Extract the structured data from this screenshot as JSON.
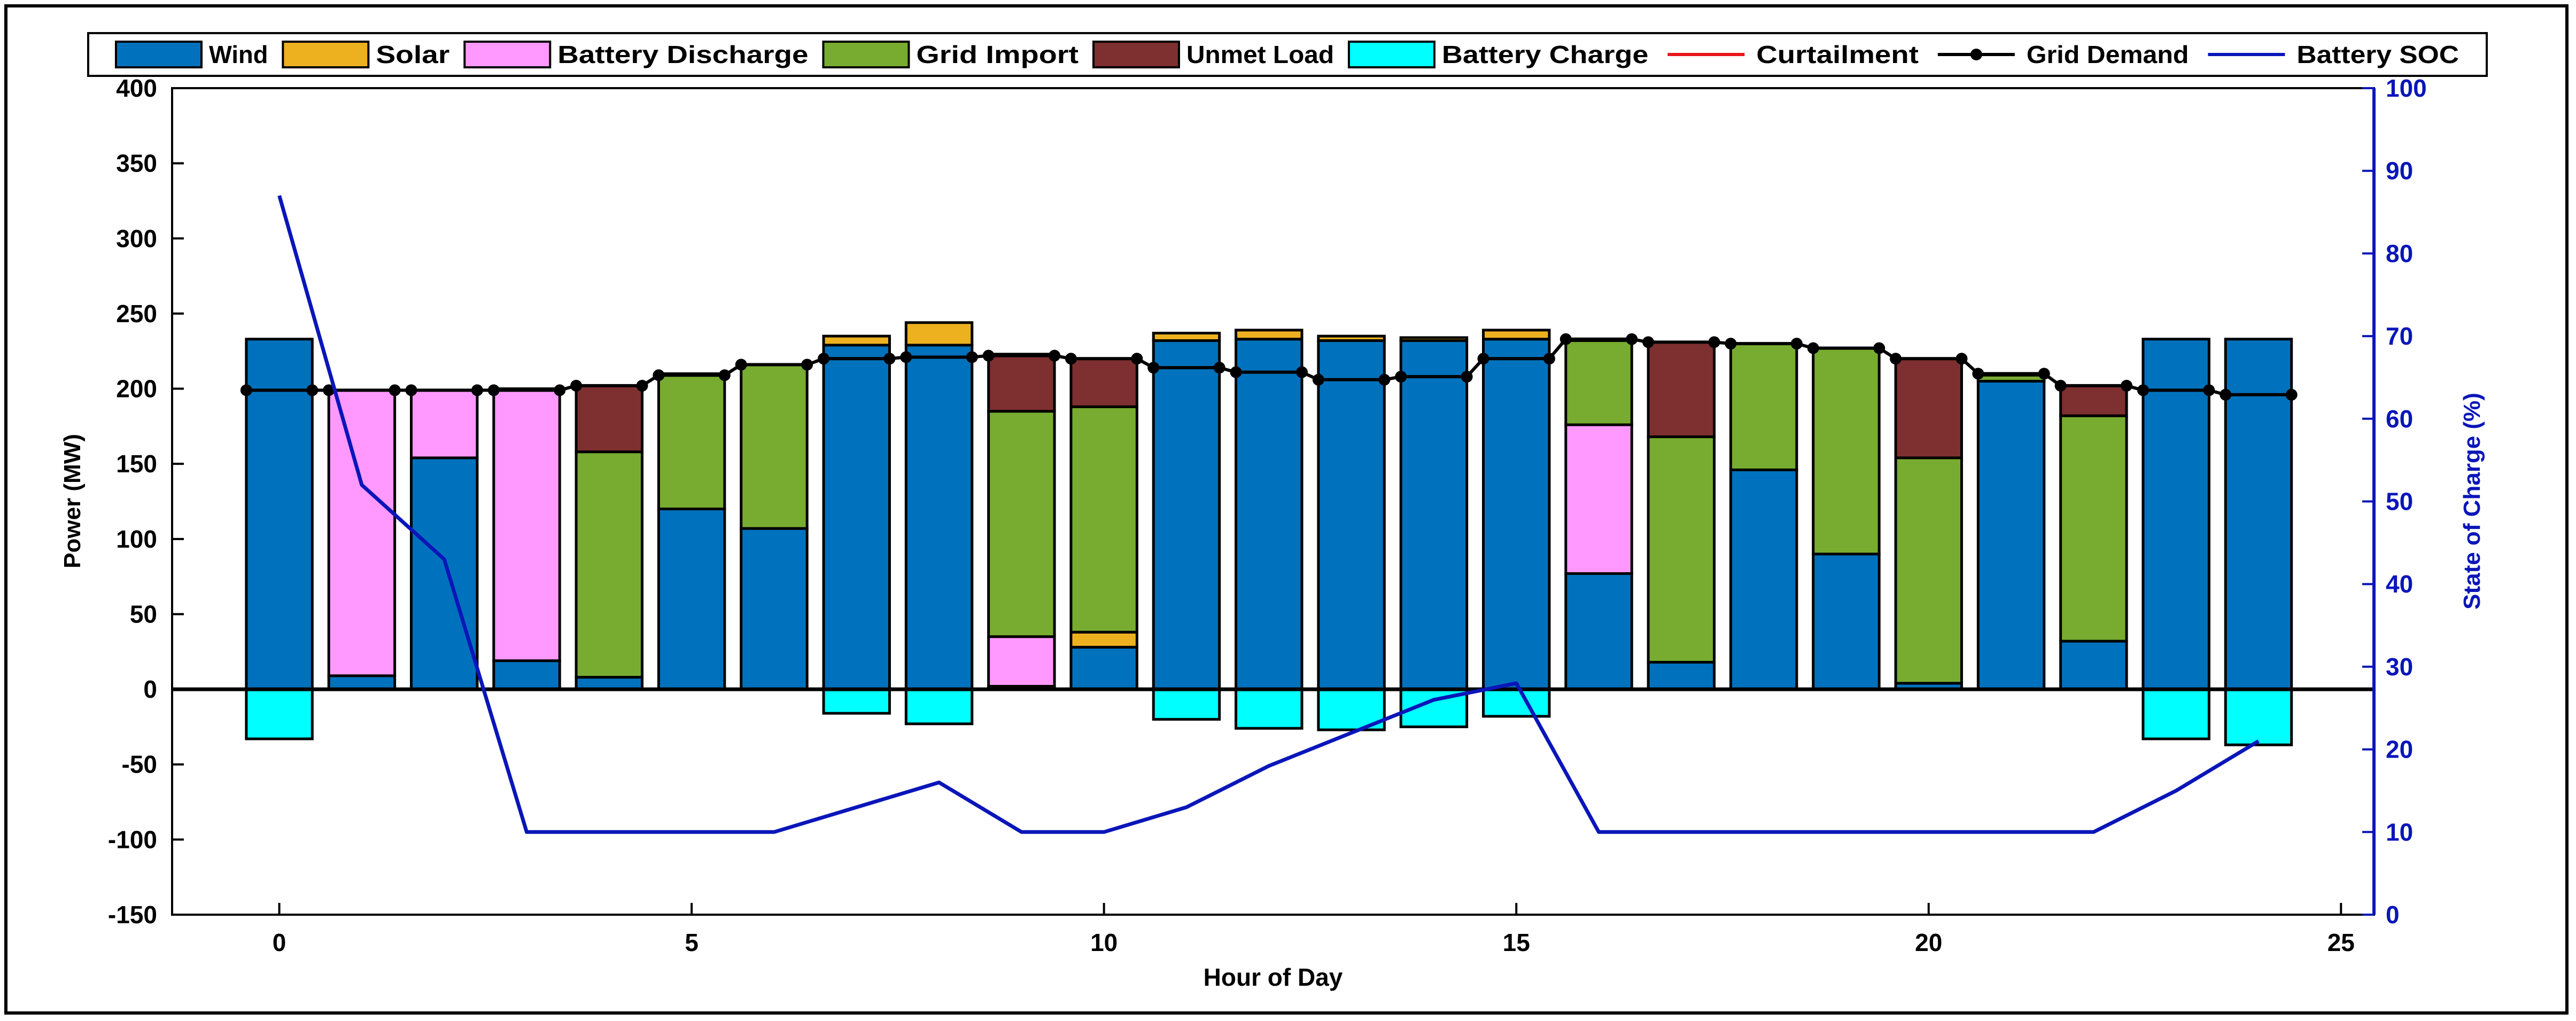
{
  "chart_data": {
    "type": "bar",
    "stacked": true,
    "xlabel": "Hour of Day",
    "ylabel": "Power (MW)",
    "y2label": "State of Charge (%)",
    "xlim": [
      -1.3,
      25.4
    ],
    "ylim": [
      -150,
      400
    ],
    "y2lim": [
      0,
      100
    ],
    "xticks": [
      0,
      5,
      10,
      15,
      20,
      25
    ],
    "yticks": [
      -150,
      -100,
      -50,
      0,
      50,
      100,
      150,
      200,
      250,
      300,
      350,
      400
    ],
    "y2ticks": [
      0,
      10,
      20,
      30,
      40,
      50,
      60,
      70,
      80,
      90,
      100
    ],
    "bar_width": 0.8,
    "legend": {
      "location": "top",
      "entries": [
        {
          "key": "wind",
          "label": "Wind",
          "kind": "patch",
          "color": "#0072BD"
        },
        {
          "key": "solar",
          "label": "Solar",
          "kind": "patch",
          "color": "#EDB120"
        },
        {
          "key": "battery_discharge",
          "label": "Battery Discharge",
          "kind": "patch",
          "color": "#FF99FF"
        },
        {
          "key": "grid_import",
          "label": "Grid Import",
          "kind": "patch",
          "color": "#77AC30"
        },
        {
          "key": "unmet_load",
          "label": "Unmet Load",
          "kind": "patch",
          "color": "#7E2F2F"
        },
        {
          "key": "battery_charge",
          "label": "Battery Charge",
          "kind": "patch",
          "color": "#00FFFF"
        },
        {
          "key": "curtailment",
          "label": "Curtailment",
          "kind": "line",
          "color": "#E8161B"
        },
        {
          "key": "grid_demand",
          "label": "Grid Demand",
          "kind": "line-marker",
          "color": "#000000"
        },
        {
          "key": "battery_soc",
          "label": "Battery SOC",
          "kind": "line",
          "color": "#0A16B8"
        }
      ]
    },
    "x": [
      0,
      1,
      2,
      3,
      4,
      5,
      6,
      7,
      8,
      9,
      10,
      11,
      12,
      13,
      14,
      15,
      16,
      17,
      18,
      19,
      20,
      21,
      22,
      23,
      24
    ],
    "series": [
      {
        "key": "wind",
        "name": "Wind",
        "values": [
          233,
          9,
          154,
          19,
          8,
          120,
          107,
          229,
          229,
          2,
          28,
          232,
          233,
          232,
          232,
          233,
          77,
          18,
          146,
          90,
          4,
          205,
          32,
          233,
          233
        ]
      },
      {
        "key": "solar",
        "name": "Solar",
        "values": [
          0,
          0,
          0,
          0,
          0,
          0,
          0,
          6,
          15,
          0,
          10,
          5,
          6,
          3,
          2,
          6,
          0,
          0,
          0,
          0,
          0,
          0,
          0,
          0,
          0
        ]
      },
      {
        "key": "battery_discharge",
        "name": "Battery Discharge",
        "values": [
          0,
          190,
          45,
          181,
          0,
          0,
          0,
          0,
          0,
          33,
          0,
          0,
          0,
          0,
          0,
          0,
          99,
          0,
          0,
          0,
          0,
          0,
          0,
          0,
          0
        ]
      },
      {
        "key": "grid_import",
        "name": "Grid Import",
        "values": [
          0,
          0,
          0,
          0,
          150,
          90,
          109,
          0,
          0,
          150,
          150,
          0,
          0,
          0,
          0,
          0,
          56,
          150,
          84,
          137,
          150,
          4,
          150,
          0,
          0
        ]
      },
      {
        "key": "unmet_load",
        "name": "Unmet Load",
        "values": [
          0,
          0,
          0,
          0,
          44,
          0,
          0,
          0,
          0,
          38,
          32,
          0,
          0,
          0,
          0,
          0,
          0,
          63,
          0,
          0,
          66,
          0,
          20,
          0,
          0
        ]
      },
      {
        "key": "battery_charge",
        "name": "Battery Charge",
        "values": [
          -33,
          0,
          0,
          0,
          0,
          0,
          0,
          -16,
          -23,
          0,
          0,
          -20,
          -26,
          -27,
          -25,
          -18,
          0,
          0,
          0,
          0,
          0,
          0,
          0,
          -33,
          -37
        ]
      }
    ],
    "grid_demand": [
      199,
      199,
      199,
      199,
      202,
      209,
      216,
      220,
      221,
      222,
      220,
      214,
      211,
      206,
      208,
      220,
      233,
      231,
      230,
      227,
      220,
      210,
      202,
      199,
      196
    ],
    "battery_soc": [
      87,
      52,
      43,
      10,
      10,
      10,
      10,
      13,
      16,
      10,
      10,
      13,
      18,
      22,
      26,
      28,
      10,
      10,
      10,
      10,
      10,
      10,
      10,
      15,
      21
    ],
    "curtailment": []
  }
}
